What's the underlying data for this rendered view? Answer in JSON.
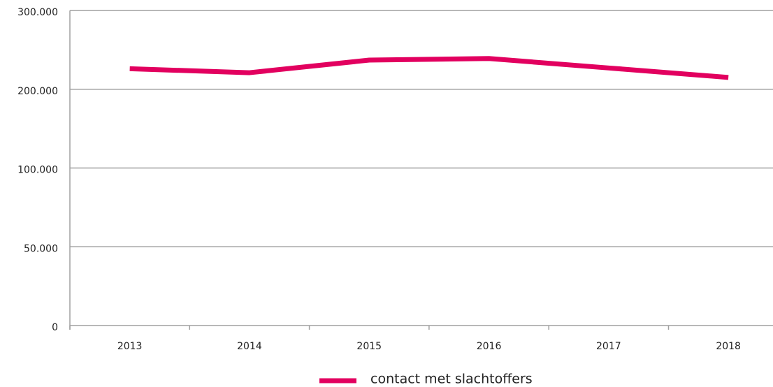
{
  "chart_data": {
    "type": "line",
    "categories": [
      "2013",
      "2014",
      "2015",
      "2016",
      "2017",
      "2018"
    ],
    "series": [
      {
        "name": "contact met slachtoffers",
        "color": "#e2005f",
        "values": [
          226000,
          221000,
          237000,
          239000,
          227000,
          215000
        ]
      }
    ],
    "ylim": [
      0,
      300000
    ],
    "yticks": [
      0,
      {
        "value": 50000,
        "label": "50.000"
      },
      {
        "value": 100000,
        "label": "100.000"
      },
      {
        "value": 200000,
        "label": "200.000"
      },
      {
        "value": 300000,
        "label": "300.000"
      }
    ],
    "grid": true,
    "legend": "bottom"
  }
}
